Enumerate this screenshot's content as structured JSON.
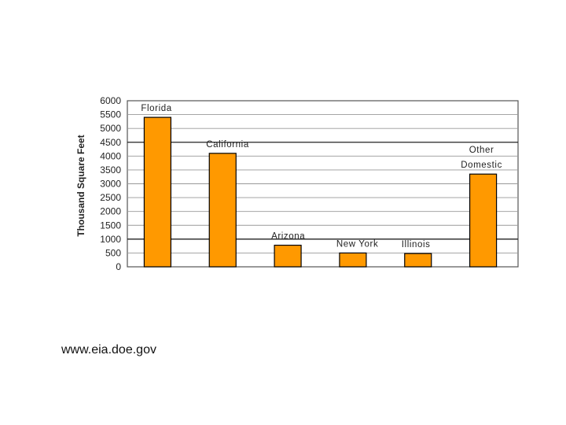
{
  "chart_data": {
    "type": "bar",
    "title": "",
    "xlabel": "",
    "ylabel": "Thousand Square Feet",
    "categories": [
      "Florida",
      "California",
      "Arizona",
      "New York",
      "Illinois",
      "Other Domestic"
    ],
    "category_label_lines": [
      [
        "Florida"
      ],
      [
        "California"
      ],
      [
        "Arizona"
      ],
      [
        "New York"
      ],
      [
        "Illinois"
      ],
      [
        "Other",
        "Domestic"
      ]
    ],
    "values": [
      5400,
      4100,
      780,
      500,
      480,
      3350
    ],
    "ylim": [
      0,
      6000
    ],
    "yticks": [
      0,
      500,
      1000,
      1500,
      2000,
      2500,
      3000,
      3500,
      4000,
      4500,
      5000,
      5500,
      6000
    ],
    "grid": true,
    "bar_color": "#FF9900",
    "bar_edge_color": "#000000"
  },
  "source_text": "www.eia.doe.gov"
}
